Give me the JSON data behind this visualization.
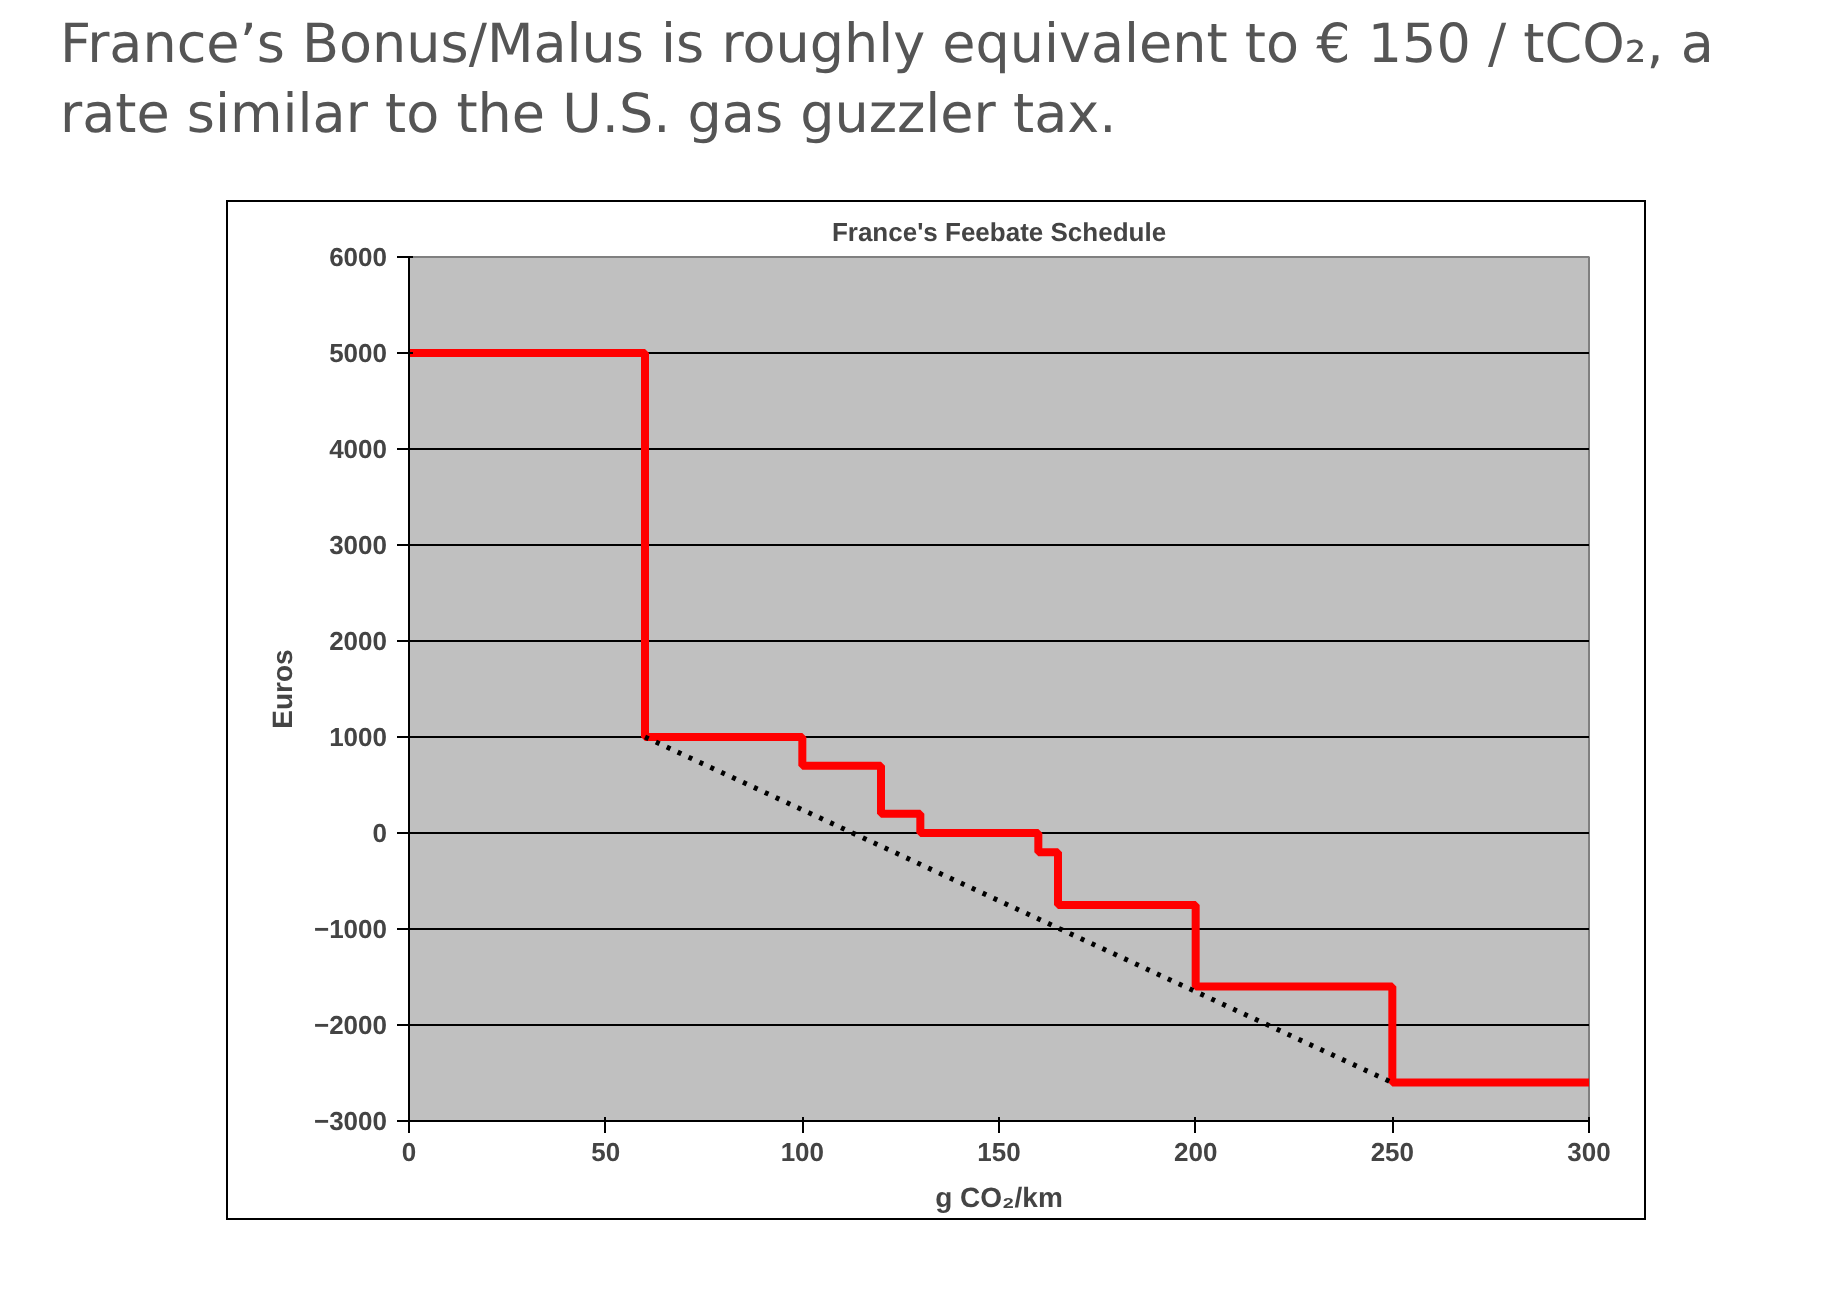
{
  "chart_data": {
    "type": "step",
    "title": "France’s Bonus/Malus is roughly equivalent to € 150 / tCO₂, a rate similar to the U.S. gas guzzler tax.",
    "subtitle": "France's Feebate Schedule",
    "xlabel": "g CO₂/km",
    "ylabel": "Euros",
    "x": [
      0,
      60,
      100,
      120,
      130,
      160,
      165,
      200,
      250,
      300
    ],
    "series": [
      {
        "color": "#ff0000",
        "values": [
          5000,
          1000,
          700,
          200,
          0,
          -200,
          -750,
          -1600,
          -2600,
          -2600
        ]
      },
      {
        "type": "line",
        "color": "#000000",
        "line_style": "dotted",
        "x": [
          60,
          250
        ],
        "values": [
          1000,
          -2600
        ]
      }
    ],
    "xlim": [
      0,
      300
    ],
    "xticks": [
      0,
      50,
      100,
      150,
      200,
      250,
      300
    ],
    "ylim": [
      -3000,
      6000
    ],
    "yticks": [
      -3000,
      -2000,
      -1000,
      0,
      1000,
      2000,
      3000,
      4000,
      5000,
      6000
    ],
    "grid": "y"
  }
}
